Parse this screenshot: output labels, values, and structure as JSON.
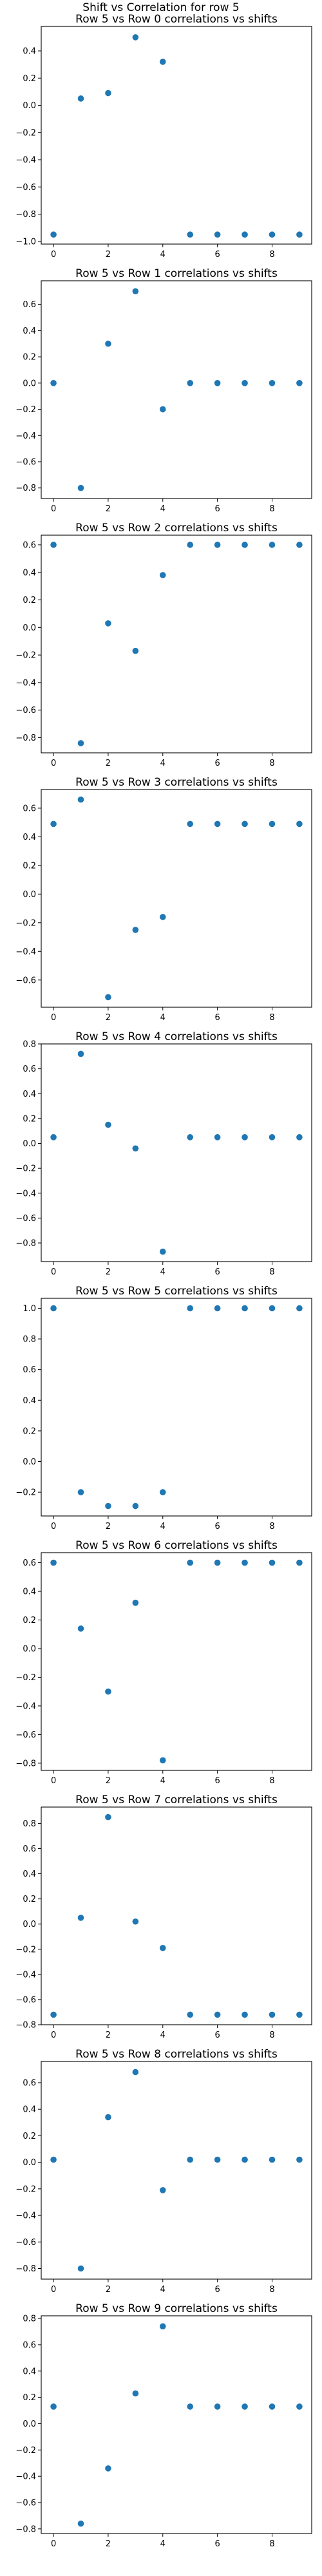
{
  "figure": {
    "title": "Shift vs Correlation for row 5"
  },
  "chart_data": [
    {
      "type": "scatter",
      "title": "Row 5 vs Row 0 correlations vs shifts",
      "x": [
        0,
        1,
        2,
        3,
        4,
        5,
        6,
        7,
        8,
        9
      ],
      "y": [
        -0.95,
        0.05,
        0.09,
        0.5,
        0.32,
        -0.95,
        -0.95,
        -0.95,
        -0.95,
        -0.95
      ],
      "xlim": [
        -0.45,
        9.45
      ],
      "ylim": [
        -1.02,
        0.58
      ],
      "xticks": [
        0,
        2,
        4,
        6,
        8
      ],
      "yticks": [
        -1.0,
        -0.8,
        -0.6,
        -0.4,
        -0.2,
        0.0,
        0.2,
        0.4
      ],
      "ytick_labels": [
        "−1.0",
        "−0.8",
        "−0.6",
        "−0.4",
        "−0.2",
        "0.0",
        "0.2",
        "0.4"
      ],
      "color": "#1f77b4"
    },
    {
      "type": "scatter",
      "title": "Row 5 vs Row 1 correlations vs shifts",
      "x": [
        0,
        1,
        2,
        3,
        4,
        5,
        6,
        7,
        8,
        9
      ],
      "y": [
        0.0,
        -0.8,
        0.3,
        0.7,
        -0.2,
        0.0,
        0.0,
        0.0,
        0.0,
        0.0
      ],
      "xlim": [
        -0.45,
        9.45
      ],
      "ylim": [
        -0.88,
        0.78
      ],
      "xticks": [
        0,
        2,
        4,
        6,
        8
      ],
      "yticks": [
        -0.8,
        -0.6,
        -0.4,
        -0.2,
        0.0,
        0.2,
        0.4,
        0.6
      ],
      "ytick_labels": [
        "−0.8",
        "−0.6",
        "−0.4",
        "−0.2",
        "0.0",
        "0.2",
        "0.4",
        "0.6"
      ],
      "color": "#1f77b4"
    },
    {
      "type": "scatter",
      "title": "Row 5 vs Row 2 correlations vs shifts",
      "x": [
        0,
        1,
        2,
        3,
        4,
        5,
        6,
        7,
        8,
        9
      ],
      "y": [
        0.6,
        -0.84,
        0.03,
        -0.17,
        0.38,
        0.6,
        0.6,
        0.6,
        0.6,
        0.6
      ],
      "xlim": [
        -0.45,
        9.45
      ],
      "ylim": [
        -0.91,
        0.67
      ],
      "xticks": [
        0,
        2,
        4,
        6,
        8
      ],
      "yticks": [
        -0.8,
        -0.6,
        -0.4,
        -0.2,
        0.0,
        0.2,
        0.4,
        0.6
      ],
      "ytick_labels": [
        "−0.8",
        "−0.6",
        "−0.4",
        "−0.2",
        "0.0",
        "0.2",
        "0.4",
        "0.6"
      ],
      "color": "#1f77b4"
    },
    {
      "type": "scatter",
      "title": "Row 5 vs Row 3 correlations vs shifts",
      "x": [
        0,
        1,
        2,
        3,
        4,
        5,
        6,
        7,
        8,
        9
      ],
      "y": [
        0.49,
        0.66,
        -0.72,
        -0.25,
        -0.16,
        0.49,
        0.49,
        0.49,
        0.49,
        0.49
      ],
      "xlim": [
        -0.45,
        9.45
      ],
      "ylim": [
        -0.79,
        0.73
      ],
      "xticks": [
        0,
        2,
        4,
        6,
        8
      ],
      "yticks": [
        -0.6,
        -0.4,
        -0.2,
        0.0,
        0.2,
        0.4,
        0.6
      ],
      "ytick_labels": [
        "−0.6",
        "−0.4",
        "−0.2",
        "0.0",
        "0.2",
        "0.4",
        "0.6"
      ],
      "color": "#1f77b4"
    },
    {
      "type": "scatter",
      "title": "Row 5 vs Row 4 correlations vs shifts",
      "x": [
        0,
        1,
        2,
        3,
        4,
        5,
        6,
        7,
        8,
        9
      ],
      "y": [
        0.05,
        0.72,
        0.15,
        -0.04,
        -0.87,
        0.05,
        0.05,
        0.05,
        0.05,
        0.05
      ],
      "xlim": [
        -0.45,
        9.45
      ],
      "ylim": [
        -0.95,
        0.8
      ],
      "xticks": [
        0,
        2,
        4,
        6,
        8
      ],
      "yticks": [
        -0.8,
        -0.6,
        -0.4,
        -0.2,
        0.0,
        0.2,
        0.4,
        0.6,
        0.8
      ],
      "ytick_labels": [
        "−0.8",
        "−0.6",
        "−0.4",
        "−0.2",
        "0.0",
        "0.2",
        "0.4",
        "0.6",
        "0.8"
      ],
      "color": "#1f77b4"
    },
    {
      "type": "scatter",
      "title": "Row 5 vs Row 5 correlations vs shifts",
      "x": [
        0,
        1,
        2,
        3,
        4,
        5,
        6,
        7,
        8,
        9
      ],
      "y": [
        1.0,
        -0.2,
        -0.29,
        -0.29,
        -0.2,
        1.0,
        1.0,
        1.0,
        1.0,
        1.0
      ],
      "xlim": [
        -0.45,
        9.45
      ],
      "ylim": [
        -0.355,
        1.065
      ],
      "xticks": [
        0,
        2,
        4,
        6,
        8
      ],
      "yticks": [
        -0.2,
        0.0,
        0.2,
        0.4,
        0.6,
        0.8,
        1.0
      ],
      "ytick_labels": [
        "−0.2",
        "0.0",
        "0.2",
        "0.4",
        "0.6",
        "0.8",
        "1.0"
      ],
      "color": "#1f77b4"
    },
    {
      "type": "scatter",
      "title": "Row 5 vs Row 6 correlations vs shifts",
      "x": [
        0,
        1,
        2,
        3,
        4,
        5,
        6,
        7,
        8,
        9
      ],
      "y": [
        0.6,
        0.14,
        -0.3,
        0.32,
        -0.78,
        0.6,
        0.6,
        0.6,
        0.6,
        0.6
      ],
      "xlim": [
        -0.45,
        9.45
      ],
      "ylim": [
        -0.85,
        0.67
      ],
      "xticks": [
        0,
        2,
        4,
        6,
        8
      ],
      "yticks": [
        -0.8,
        -0.6,
        -0.4,
        -0.2,
        0.0,
        0.2,
        0.4,
        0.6
      ],
      "ytick_labels": [
        "−0.8",
        "−0.6",
        "−0.4",
        "−0.2",
        "0.0",
        "0.2",
        "0.4",
        "0.6"
      ],
      "color": "#1f77b4"
    },
    {
      "type": "scatter",
      "title": "Row 5 vs Row 7 correlations vs shifts",
      "x": [
        0,
        1,
        2,
        3,
        4,
        5,
        6,
        7,
        8,
        9
      ],
      "y": [
        -0.72,
        0.05,
        0.85,
        0.02,
        -0.19,
        -0.72,
        -0.72,
        -0.72,
        -0.72,
        -0.72
      ],
      "xlim": [
        -0.45,
        9.45
      ],
      "ylim": [
        -0.8,
        0.93
      ],
      "xticks": [
        0,
        2,
        4,
        6,
        8
      ],
      "yticks": [
        -0.8,
        -0.6,
        -0.4,
        -0.2,
        0.0,
        0.2,
        0.4,
        0.6,
        0.8
      ],
      "ytick_labels": [
        "−0.8",
        "−0.6",
        "−0.4",
        "−0.2",
        "0.0",
        "0.2",
        "0.4",
        "0.6",
        "0.8"
      ],
      "color": "#1f77b4"
    },
    {
      "type": "scatter",
      "title": "Row 5 vs Row 8 correlations vs shifts",
      "x": [
        0,
        1,
        2,
        3,
        4,
        5,
        6,
        7,
        8,
        9
      ],
      "y": [
        0.02,
        -0.8,
        0.34,
        0.68,
        -0.21,
        0.02,
        0.02,
        0.02,
        0.02,
        0.02
      ],
      "xlim": [
        -0.45,
        9.45
      ],
      "ylim": [
        -0.88,
        0.76
      ],
      "xticks": [
        0,
        2,
        4,
        6,
        8
      ],
      "yticks": [
        -0.8,
        -0.6,
        -0.4,
        -0.2,
        0.0,
        0.2,
        0.4,
        0.6
      ],
      "ytick_labels": [
        "−0.8",
        "−0.6",
        "−0.4",
        "−0.2",
        "0.0",
        "0.2",
        "0.4",
        "0.6"
      ],
      "color": "#1f77b4"
    },
    {
      "type": "scatter",
      "title": "Row 5 vs Row 9 correlations vs shifts",
      "x": [
        0,
        1,
        2,
        3,
        4,
        5,
        6,
        7,
        8,
        9
      ],
      "y": [
        0.13,
        -0.76,
        -0.34,
        0.23,
        0.74,
        0.13,
        0.13,
        0.13,
        0.13,
        0.13
      ],
      "xlim": [
        -0.45,
        9.45
      ],
      "ylim": [
        -0.835,
        0.82
      ],
      "xticks": [
        0,
        2,
        4,
        6,
        8
      ],
      "yticks": [
        -0.8,
        -0.6,
        -0.4,
        -0.2,
        0.0,
        0.2,
        0.4,
        0.6,
        0.8
      ],
      "ytick_labels": [
        "−0.8",
        "−0.6",
        "−0.4",
        "−0.2",
        "0.0",
        "0.2",
        "0.4",
        "0.6",
        "0.8"
      ],
      "color": "#1f77b4"
    }
  ]
}
